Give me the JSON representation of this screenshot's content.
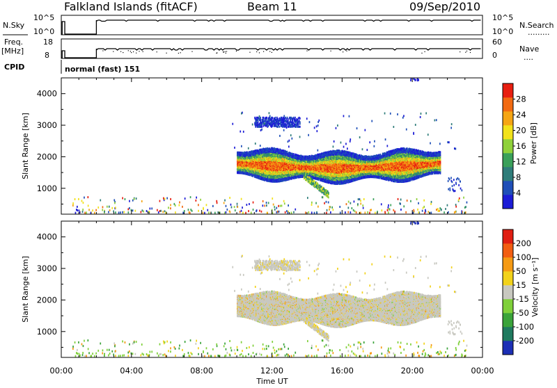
{
  "header": {
    "station": "Falkland Islands (fitACF)",
    "beam": "Beam 11",
    "date": "09/Sep/2010"
  },
  "strip_labels": {
    "nsky": "N.Sky",
    "nsearch": "N.Search",
    "freq_line1": "Freq.",
    "freq_line2": "[MHz]",
    "nave": "Nave",
    "cpid": "CPID",
    "dots_long": ".........",
    "dots_short": "....",
    "nsky_ticks": [
      "10^5",
      "10^0"
    ],
    "freq_ticks": [
      "18",
      "8"
    ],
    "nave_ticks": [
      "60",
      "0"
    ],
    "cpid_text": "normal (fast) 151"
  },
  "colors": {
    "power_scale": [
      "#1c1cd6",
      "#1f4fb8",
      "#2f7d7a",
      "#3aa05a",
      "#8fd13a",
      "#f2e21a",
      "#f5a514",
      "#f26a12",
      "#e81e10"
    ],
    "velocity_scale": [
      "#1c2fb5",
      "#1f7a5f",
      "#3aa33a",
      "#7fd03a",
      "#c8c8c0",
      "#f2d21a",
      "#f59a14",
      "#f25e12",
      "#e01e12"
    ],
    "noise_line": "#000000"
  },
  "chart_data": [
    {
      "type": "heatmap",
      "title": "Power",
      "xlabel": "Time UT",
      "ylabel": "Slant Range [km]",
      "colorbar_label": "Power [dB]",
      "colorbar_ticks": [
        "28",
        "24",
        "20",
        "16",
        "12",
        "8",
        "4"
      ],
      "x_ticks": [
        "00:00",
        "04:00",
        "08:00",
        "12:00",
        "16:00",
        "20:00",
        "00:00"
      ],
      "y_ticks": [
        "4000",
        "3000",
        "2000",
        "1000"
      ],
      "xlim": [
        0,
        24
      ],
      "ylim": [
        180,
        4500
      ],
      "features": [
        {
          "name": "main band",
          "t_start": 10.0,
          "t_end": 21.6,
          "range_min": 1300,
          "range_max": 2300,
          "peak_db": 26
        },
        {
          "name": "upper patch",
          "t_start": 11.0,
          "t_end": 13.6,
          "range_min": 2950,
          "range_max": 3250,
          "peak_db": 6
        },
        {
          "name": "descending trail",
          "t_start": 13.8,
          "t_end": 15.2,
          "range_min": 800,
          "range_max": 1400,
          "peak_db": 16
        }
      ]
    },
    {
      "type": "heatmap",
      "title": "Velocity",
      "xlabel": "Time UT",
      "ylabel": "Slant Range [km]",
      "colorbar_label": "Velocity [m s⁻¹]",
      "colorbar_ticks": [
        "200",
        "100",
        "50",
        "15",
        "-15",
        "-50",
        "-100",
        "-200"
      ],
      "x_ticks": [
        "00:00",
        "04:00",
        "08:00",
        "12:00",
        "16:00",
        "20:00",
        "00:00"
      ],
      "y_ticks": [
        "4000",
        "3000",
        "2000",
        "1000"
      ],
      "xlim": [
        0,
        24
      ],
      "ylim": [
        180,
        4500
      ]
    }
  ]
}
